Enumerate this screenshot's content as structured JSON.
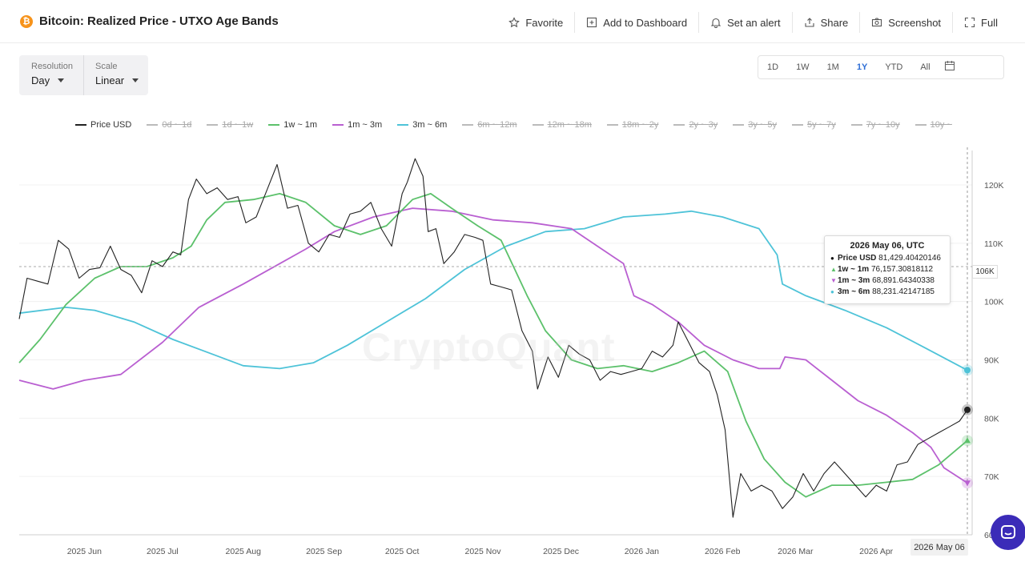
{
  "header": {
    "title": "Bitcoin: Realized Price - UTXO Age Bands",
    "logo_glyph": "₿",
    "toolbar": [
      {
        "name": "favorite-button",
        "icon": "star-icon",
        "label": "Favorite"
      },
      {
        "name": "add-to-dashboard-button",
        "icon": "dashboard-add-icon",
        "label": "Add to Dashboard"
      },
      {
        "name": "set-alert-button",
        "icon": "bell-icon",
        "label": "Set an alert"
      },
      {
        "name": "share-button",
        "icon": "share-icon",
        "label": "Share"
      },
      {
        "name": "screenshot-button",
        "icon": "camera-icon",
        "label": "Screenshot"
      },
      {
        "name": "fullscreen-button",
        "icon": "expand-icon",
        "label": "Full"
      }
    ]
  },
  "controls": {
    "resolution": {
      "label": "Resolution",
      "value": "Day"
    },
    "scale": {
      "label": "Scale",
      "value": "Linear"
    }
  },
  "ranges": {
    "items": [
      "1D",
      "1W",
      "1M",
      "1Y",
      "YTD",
      "All"
    ],
    "active": "1Y"
  },
  "tooltip": {
    "title": "2026 May 06, UTC",
    "rows": [
      {
        "marker": "●",
        "color": "#111111",
        "name": "Price USD",
        "value": "81,429.40420146"
      },
      {
        "marker": "▲",
        "color": "#5cc16b",
        "name": "1w ~ 1m",
        "value": "76,157.30818112"
      },
      {
        "marker": "▼",
        "color": "#b95fd1",
        "name": "1m ~ 3m",
        "value": "68,891.64340338"
      },
      {
        "marker": "●",
        "color": "#4ec3d8",
        "name": "3m ~ 6m",
        "value": "88,231.42147185"
      }
    ]
  },
  "crosshair": {
    "price_label": "106K",
    "date_label": "2026 May 06"
  },
  "watermark": "CryptoQuant",
  "chart_data": {
    "type": "line",
    "y_ticks": [
      "60K",
      "70K",
      "80K",
      "90K",
      "100K",
      "110K",
      "120K"
    ],
    "ylim": [
      60000,
      127000
    ],
    "x_ticks": [
      "2025 Jun",
      "2025 Jul",
      "2025 Aug",
      "2025 Sep",
      "2025 Oct",
      "2025 Nov",
      "2025 Dec",
      "2026 Jan",
      "2026 Feb",
      "2026 Mar",
      "2026 Apr"
    ],
    "x_tick_dates": [
      "2025-06-01",
      "2025-07-01",
      "2025-08-01",
      "2025-09-01",
      "2025-10-01",
      "2025-11-01",
      "2025-12-01",
      "2026-01-01",
      "2026-02-01",
      "2026-03-01",
      "2026-04-01"
    ],
    "xlim": [
      "2025-05-07",
      "2026-05-06"
    ],
    "legend": [
      {
        "name": "Price USD",
        "color": "#222222",
        "visible": true
      },
      {
        "name": "0d ~ 1d",
        "color": "#bbbbbb",
        "visible": false
      },
      {
        "name": "1d ~ 1w",
        "color": "#bbbbbb",
        "visible": false
      },
      {
        "name": "1w ~ 1m",
        "color": "#5cc16b",
        "visible": true
      },
      {
        "name": "1m ~ 3m",
        "color": "#b95fd1",
        "visible": true
      },
      {
        "name": "3m ~ 6m",
        "color": "#4ec3d8",
        "visible": true
      },
      {
        "name": "6m ~ 12m",
        "color": "#bbbbbb",
        "visible": false
      },
      {
        "name": "12m ~ 18m",
        "color": "#bbbbbb",
        "visible": false
      },
      {
        "name": "18m ~ 2y",
        "color": "#bbbbbb",
        "visible": false
      },
      {
        "name": "2y ~ 3y",
        "color": "#bbbbbb",
        "visible": false
      },
      {
        "name": "3y ~ 5y",
        "color": "#bbbbbb",
        "visible": false
      },
      {
        "name": "5y ~ 7y",
        "color": "#bbbbbb",
        "visible": false
      },
      {
        "name": "7y ~ 10y",
        "color": "#bbbbbb",
        "visible": false
      },
      {
        "name": "10y ~",
        "color": "#bbbbbb",
        "visible": false
      }
    ],
    "series": [
      {
        "name": "Price USD",
        "color": "#222222",
        "marker": "circle",
        "points": [
          [
            "2025-05-07",
            97000
          ],
          [
            "2025-05-10",
            104000
          ],
          [
            "2025-05-14",
            103500
          ],
          [
            "2025-05-18",
            103000
          ],
          [
            "2025-05-22",
            110500
          ],
          [
            "2025-05-26",
            109000
          ],
          [
            "2025-05-30",
            104000
          ],
          [
            "2025-06-03",
            105500
          ],
          [
            "2025-06-07",
            105800
          ],
          [
            "2025-06-11",
            109500
          ],
          [
            "2025-06-15",
            105500
          ],
          [
            "2025-06-19",
            104500
          ],
          [
            "2025-06-23",
            101500
          ],
          [
            "2025-06-27",
            107000
          ],
          [
            "2025-07-01",
            106000
          ],
          [
            "2025-07-05",
            108500
          ],
          [
            "2025-07-08",
            108000
          ],
          [
            "2025-07-11",
            117500
          ],
          [
            "2025-07-14",
            121000
          ],
          [
            "2025-07-18",
            118500
          ],
          [
            "2025-07-22",
            119500
          ],
          [
            "2025-07-26",
            117500
          ],
          [
            "2025-07-30",
            118000
          ],
          [
            "2025-08-02",
            113500
          ],
          [
            "2025-08-06",
            114500
          ],
          [
            "2025-08-10",
            119000
          ],
          [
            "2025-08-14",
            123500
          ],
          [
            "2025-08-18",
            116000
          ],
          [
            "2025-08-22",
            116500
          ],
          [
            "2025-08-26",
            110000
          ],
          [
            "2025-08-30",
            108500
          ],
          [
            "2025-09-03",
            111500
          ],
          [
            "2025-09-07",
            111000
          ],
          [
            "2025-09-11",
            115000
          ],
          [
            "2025-09-15",
            115500
          ],
          [
            "2025-09-19",
            117000
          ],
          [
            "2025-09-23",
            112500
          ],
          [
            "2025-09-27",
            109500
          ],
          [
            "2025-10-01",
            118500
          ],
          [
            "2025-10-03",
            120500
          ],
          [
            "2025-10-06",
            124500
          ],
          [
            "2025-10-09",
            121500
          ],
          [
            "2025-10-11",
            112000
          ],
          [
            "2025-10-14",
            112500
          ],
          [
            "2025-10-17",
            106500
          ],
          [
            "2025-10-21",
            108500
          ],
          [
            "2025-10-25",
            111500
          ],
          [
            "2025-10-29",
            111000
          ],
          [
            "2025-11-01",
            110500
          ],
          [
            "2025-11-04",
            103000
          ],
          [
            "2025-11-08",
            102500
          ],
          [
            "2025-11-12",
            102000
          ],
          [
            "2025-11-16",
            95000
          ],
          [
            "2025-11-20",
            91500
          ],
          [
            "2025-11-22",
            85000
          ],
          [
            "2025-11-26",
            90500
          ],
          [
            "2025-11-30",
            87000
          ],
          [
            "2025-12-04",
            92500
          ],
          [
            "2025-12-08",
            91000
          ],
          [
            "2025-12-12",
            90000
          ],
          [
            "2025-12-16",
            86500
          ],
          [
            "2025-12-20",
            88000
          ],
          [
            "2025-12-24",
            87500
          ],
          [
            "2025-12-28",
            88000
          ],
          [
            "2026-01-01",
            88500
          ],
          [
            "2026-01-05",
            91500
          ],
          [
            "2026-01-09",
            90500
          ],
          [
            "2026-01-13",
            92500
          ],
          [
            "2026-01-15",
            96500
          ],
          [
            "2026-01-19",
            93000
          ],
          [
            "2026-01-23",
            89500
          ],
          [
            "2026-01-27",
            88000
          ],
          [
            "2026-01-30",
            84000
          ],
          [
            "2026-02-02",
            78000
          ],
          [
            "2026-02-05",
            63000
          ],
          [
            "2026-02-08",
            70500
          ],
          [
            "2026-02-12",
            67500
          ],
          [
            "2026-02-16",
            68500
          ],
          [
            "2026-02-20",
            67500
          ],
          [
            "2026-02-24",
            64500
          ],
          [
            "2026-02-28",
            66500
          ],
          [
            "2026-03-04",
            70500
          ],
          [
            "2026-03-08",
            67500
          ],
          [
            "2026-03-12",
            70500
          ],
          [
            "2026-03-16",
            72500
          ],
          [
            "2026-03-20",
            70500
          ],
          [
            "2026-03-24",
            68500
          ],
          [
            "2026-03-28",
            66500
          ],
          [
            "2026-04-01",
            68500
          ],
          [
            "2026-04-05",
            67500
          ],
          [
            "2026-04-09",
            72000
          ],
          [
            "2026-04-13",
            72500
          ],
          [
            "2026-04-17",
            75500
          ],
          [
            "2026-04-21",
            76500
          ],
          [
            "2026-04-25",
            77500
          ],
          [
            "2026-04-29",
            78500
          ],
          [
            "2026-05-03",
            79500
          ],
          [
            "2026-05-06",
            81429
          ]
        ]
      },
      {
        "name": "1w ~ 1m",
        "color": "#5cc16b",
        "marker": "triangle-up",
        "points": [
          [
            "2025-05-07",
            89500
          ],
          [
            "2025-05-15",
            93500
          ],
          [
            "2025-05-25",
            99500
          ],
          [
            "2025-06-05",
            104000
          ],
          [
            "2025-06-15",
            106000
          ],
          [
            "2025-06-25",
            106000
          ],
          [
            "2025-07-05",
            107500
          ],
          [
            "2025-07-12",
            109500
          ],
          [
            "2025-07-18",
            114000
          ],
          [
            "2025-07-25",
            117000
          ],
          [
            "2025-08-05",
            117500
          ],
          [
            "2025-08-15",
            118500
          ],
          [
            "2025-08-25",
            117000
          ],
          [
            "2025-09-05",
            113000
          ],
          [
            "2025-09-15",
            111500
          ],
          [
            "2025-09-25",
            113000
          ],
          [
            "2025-10-05",
            117500
          ],
          [
            "2025-10-12",
            118500
          ],
          [
            "2025-10-20",
            116000
          ],
          [
            "2025-10-30",
            113000
          ],
          [
            "2025-11-08",
            110500
          ],
          [
            "2025-11-18",
            101000
          ],
          [
            "2025-11-25",
            95000
          ],
          [
            "2025-12-05",
            90000
          ],
          [
            "2025-12-15",
            88500
          ],
          [
            "2025-12-25",
            89000
          ],
          [
            "2026-01-05",
            88000
          ],
          [
            "2026-01-15",
            89500
          ],
          [
            "2026-01-25",
            91500
          ],
          [
            "2026-02-03",
            88000
          ],
          [
            "2026-02-10",
            79500
          ],
          [
            "2026-02-17",
            73000
          ],
          [
            "2026-02-25",
            69000
          ],
          [
            "2026-03-05",
            66500
          ],
          [
            "2026-03-15",
            68500
          ],
          [
            "2026-03-25",
            68500
          ],
          [
            "2026-04-05",
            69000
          ],
          [
            "2026-04-15",
            69500
          ],
          [
            "2026-04-25",
            72000
          ],
          [
            "2026-05-06",
            76157
          ]
        ]
      },
      {
        "name": "1m ~ 3m",
        "color": "#b95fd1",
        "marker": "triangle-down",
        "points": [
          [
            "2025-05-07",
            86500
          ],
          [
            "2025-05-20",
            85000
          ],
          [
            "2025-06-01",
            86500
          ],
          [
            "2025-06-15",
            87500
          ],
          [
            "2025-07-01",
            93000
          ],
          [
            "2025-07-15",
            99000
          ],
          [
            "2025-08-01",
            103000
          ],
          [
            "2025-08-15",
            106500
          ],
          [
            "2025-08-25",
            109000
          ],
          [
            "2025-09-05",
            112000
          ],
          [
            "2025-09-20",
            114500
          ],
          [
            "2025-10-05",
            116000
          ],
          [
            "2025-10-20",
            115500
          ],
          [
            "2025-11-05",
            114000
          ],
          [
            "2025-11-20",
            113500
          ],
          [
            "2025-12-05",
            112500
          ],
          [
            "2025-12-15",
            109500
          ],
          [
            "2025-12-25",
            106500
          ],
          [
            "2025-12-29",
            101000
          ],
          [
            "2026-01-05",
            99500
          ],
          [
            "2026-01-15",
            96500
          ],
          [
            "2026-01-25",
            92500
          ],
          [
            "2026-02-05",
            90000
          ],
          [
            "2026-02-15",
            88500
          ],
          [
            "2026-02-23",
            88500
          ],
          [
            "2026-02-25",
            90500
          ],
          [
            "2026-03-05",
            90000
          ],
          [
            "2026-03-15",
            86500
          ],
          [
            "2026-03-25",
            83000
          ],
          [
            "2026-04-05",
            80500
          ],
          [
            "2026-04-15",
            77500
          ],
          [
            "2026-04-22",
            75000
          ],
          [
            "2026-04-27",
            71500
          ],
          [
            "2026-05-06",
            68891
          ]
        ]
      },
      {
        "name": "3m ~ 6m",
        "color": "#4ec3d8",
        "marker": "circle",
        "points": [
          [
            "2025-05-07",
            98000
          ],
          [
            "2025-05-25",
            99000
          ],
          [
            "2025-06-05",
            98500
          ],
          [
            "2025-06-20",
            96500
          ],
          [
            "2025-07-05",
            93500
          ],
          [
            "2025-07-20",
            91000
          ],
          [
            "2025-08-01",
            89000
          ],
          [
            "2025-08-15",
            88500
          ],
          [
            "2025-08-28",
            89500
          ],
          [
            "2025-09-10",
            92500
          ],
          [
            "2025-09-25",
            96500
          ],
          [
            "2025-10-10",
            100500
          ],
          [
            "2025-10-25",
            105500
          ],
          [
            "2025-11-10",
            109500
          ],
          [
            "2025-11-25",
            112000
          ],
          [
            "2025-12-10",
            112500
          ],
          [
            "2025-12-25",
            114500
          ],
          [
            "2026-01-10",
            115000
          ],
          [
            "2026-01-20",
            115500
          ],
          [
            "2026-02-01",
            114500
          ],
          [
            "2026-02-15",
            112500
          ],
          [
            "2026-02-22",
            108000
          ],
          [
            "2026-02-24",
            103000
          ],
          [
            "2026-03-05",
            101000
          ],
          [
            "2026-03-20",
            98500
          ],
          [
            "2026-04-05",
            95500
          ],
          [
            "2026-04-20",
            92000
          ],
          [
            "2026-05-06",
            88231
          ]
        ]
      }
    ]
  }
}
